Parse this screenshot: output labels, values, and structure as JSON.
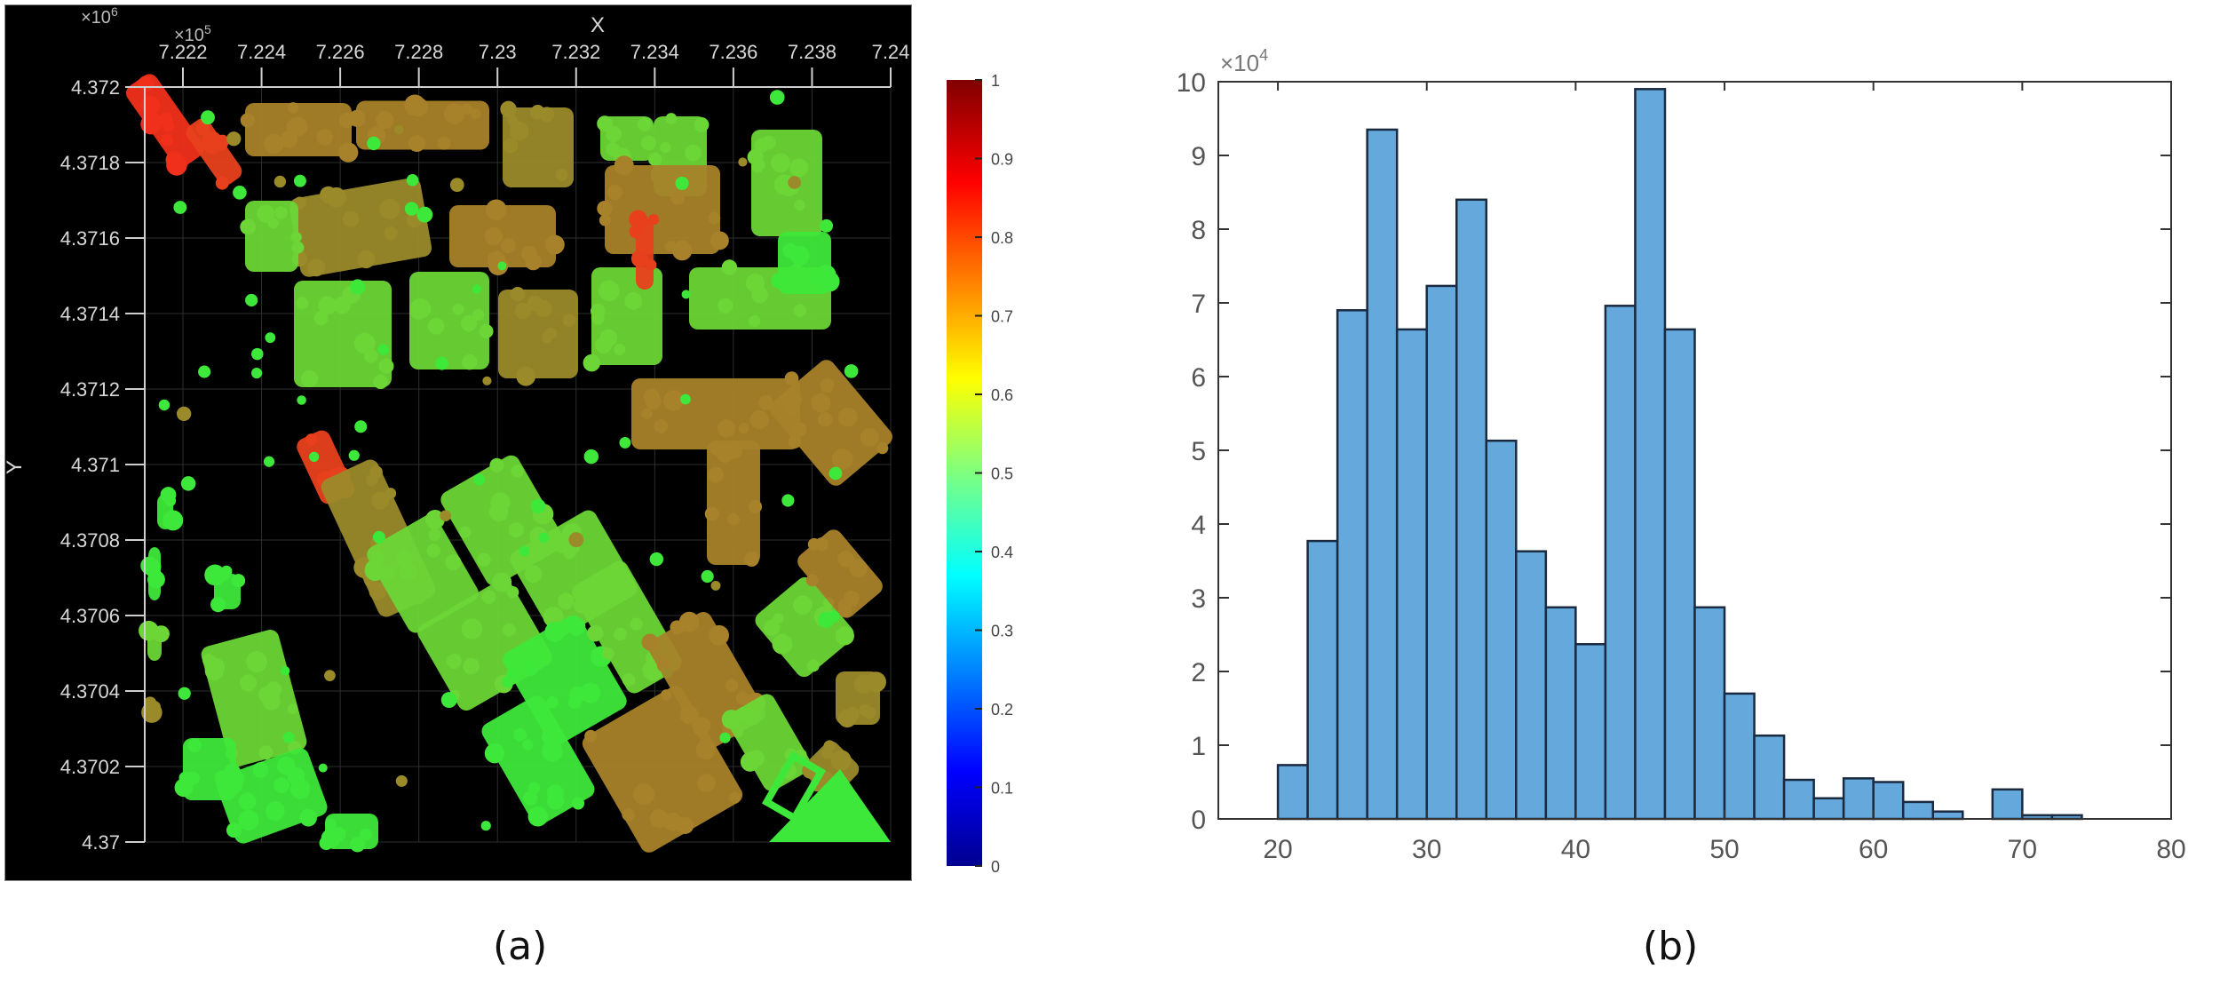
{
  "figure": {
    "caption_a": "(a)",
    "caption_b": "(b)"
  },
  "chart_data": [
    {
      "type": "scatter",
      "title": "",
      "xlabel": "X",
      "ylabel": "Y",
      "x_exponent": "×10^5",
      "y_exponent": "×10^6",
      "x_exp_base": "×10",
      "x_exp_power": "5",
      "y_exp_base": "×10",
      "y_exp_power": "6",
      "xticks": [
        "7.222",
        "7.224",
        "7.226",
        "7.228",
        "7.23",
        "7.232",
        "7.234",
        "7.236",
        "7.238",
        "7.24"
      ],
      "yticks": [
        "4.372",
        "4.3718",
        "4.3716",
        "4.3714",
        "4.3712",
        "4.371",
        "4.3708",
        "4.3706",
        "4.3704",
        "4.3702",
        "4.37"
      ],
      "xlim": [
        7.2208,
        7.24
      ],
      "ylim": [
        4.37,
        4.372
      ],
      "background": "#000000",
      "grid": true,
      "colormap": "jet",
      "colorbar": {
        "range": [
          0,
          1
        ],
        "ticks": [
          "1",
          "0.9",
          "0.8",
          "0.7",
          "0.6",
          "0.5",
          "0.4",
          "0.3",
          "0.2",
          "0.1",
          "0"
        ]
      },
      "description": "Point cloud of urban building footprints colored by normalized value; mostly green (~0.5) with brownish-orange (~0.6-0.7) blocks and red (~0.85) clusters in the northwest corner."
    },
    {
      "type": "bar",
      "subtype": "histogram",
      "title": "",
      "xlabel": "",
      "ylabel": "",
      "y_exp_base": "×10",
      "y_exp_power": "4",
      "y_multiplier": 10000,
      "xlim": [
        16,
        80
      ],
      "ylim": [
        0,
        10
      ],
      "xticks": [
        "20",
        "30",
        "40",
        "50",
        "60",
        "70",
        "80"
      ],
      "yticks": [
        "0",
        "1",
        "2",
        "3",
        "4",
        "5",
        "6",
        "7",
        "8",
        "9",
        "10"
      ],
      "bin_width": 2,
      "bin_edges": [
        20,
        22,
        24,
        26,
        28,
        30,
        32,
        34,
        36,
        38,
        40,
        42,
        44,
        46,
        48,
        50,
        52,
        54,
        56,
        58,
        60,
        62,
        64,
        66,
        68,
        70,
        72,
        74
      ],
      "values": [
        0.73,
        3.77,
        6.9,
        9.35,
        6.64,
        7.23,
        8.4,
        5.13,
        3.63,
        2.87,
        2.37,
        6.96,
        9.9,
        6.64,
        2.87,
        1.7,
        1.13,
        0.53,
        0.28,
        0.55,
        0.5,
        0.23,
        0.1,
        0.0,
        0.4,
        0.05,
        0.05
      ],
      "bar_color": "#64a8dc",
      "edge_color": "#1a2a40",
      "grid": false
    }
  ]
}
